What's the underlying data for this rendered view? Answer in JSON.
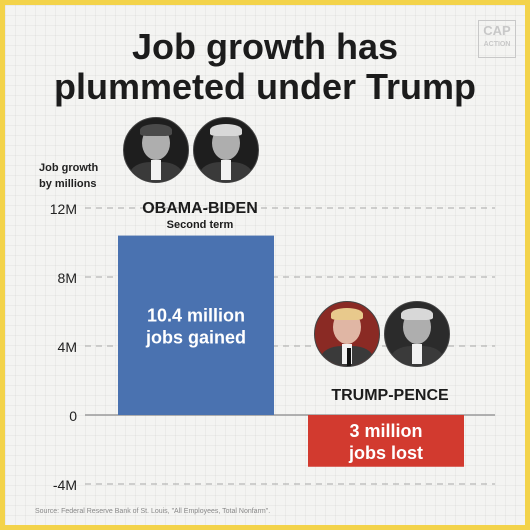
{
  "title": {
    "line1": "Job growth has",
    "line2": "plummeted under Trump"
  },
  "logo": {
    "line1": "CAP",
    "line2": "ACTION"
  },
  "y_axis_title": {
    "line1": "Job growth",
    "line2": "by millions"
  },
  "groups": {
    "obama": {
      "name": "OBAMA-BIDEN",
      "subtitle": "Second term"
    },
    "trump": {
      "name": "TRUMP-PENCE"
    }
  },
  "photos": [
    "obama-portrait",
    "biden-portrait",
    "trump-portrait",
    "pence-portrait"
  ],
  "colors": {
    "obama_bar": "#4a72b0",
    "trump_bar": "#d23a2f",
    "frame": "#f3d34a"
  },
  "source": "Source: Federal Reserve Bank of St. Louis, \"All Employees, Total Nonfarm\".",
  "chart_data": {
    "type": "bar",
    "categories": [
      "OBAMA-BIDEN",
      "TRUMP-PENCE"
    ],
    "values": [
      10.4,
      -3
    ],
    "data_labels": [
      [
        "10.4 million",
        "jobs gained"
      ],
      [
        "3 million",
        "jobs lost"
      ]
    ],
    "ylim": [
      -4,
      12
    ],
    "ytick_values": [
      -4,
      0,
      4,
      8,
      12
    ],
    "ytick_labels": [
      "-4M",
      "0",
      "4M",
      "8M",
      "12M"
    ],
    "ylabel": "Job growth by millions",
    "grid": true
  }
}
